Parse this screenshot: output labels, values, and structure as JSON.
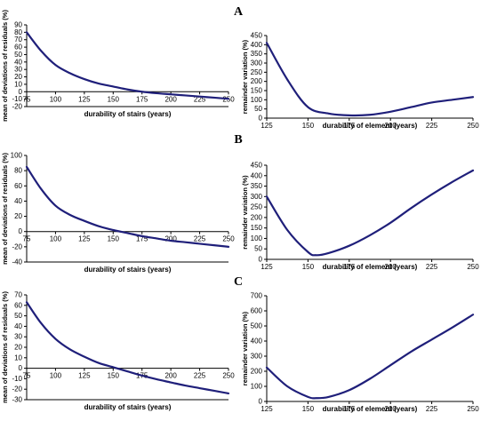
{
  "panels": [
    {
      "label": "A"
    },
    {
      "label": "B"
    },
    {
      "label": "C"
    }
  ],
  "chart_data": [
    {
      "type": "line",
      "panel": "A",
      "xlabel": "durability of stairs (years)",
      "ylabel": "mean of deviations of residuals (%)",
      "xlim": [
        75,
        250
      ],
      "ylim": [
        -20,
        90
      ],
      "xticks": [
        75,
        100,
        125,
        150,
        175,
        200,
        225,
        250
      ],
      "yticks": [
        -20,
        -10,
        0,
        10,
        20,
        30,
        40,
        50,
        60,
        70,
        80,
        90
      ],
      "grid": false,
      "color": "#1f1f7a",
      "x": [
        75,
        87.5,
        100,
        112.5,
        125,
        137.5,
        150,
        162.5,
        175,
        187.5,
        200,
        212.5,
        225,
        237.5,
        250
      ],
      "y": [
        80,
        55,
        36,
        25,
        17,
        11,
        7,
        3,
        0,
        -2,
        -3.5,
        -5,
        -6.5,
        -8,
        -9.5
      ]
    },
    {
      "type": "line",
      "panel": "A",
      "xlabel": "durability of element (years)",
      "ylabel": "remainder variation (%)",
      "xlim": [
        125,
        250
      ],
      "ylim": [
        0,
        450
      ],
      "xticks": [
        125,
        150,
        175,
        200,
        225,
        250
      ],
      "yticks": [
        0,
        50,
        100,
        150,
        200,
        250,
        300,
        350,
        400,
        450
      ],
      "grid": false,
      "color": "#1f1f7a",
      "x": [
        125,
        137.5,
        150,
        162.5,
        175,
        187.5,
        200,
        212.5,
        225,
        237.5,
        250
      ],
      "y": [
        410,
        210,
        60,
        25,
        15,
        18,
        35,
        60,
        85,
        100,
        115
      ]
    },
    {
      "type": "line",
      "panel": "B",
      "xlabel": "durability of stairs (years)",
      "ylabel": "mean of deviations of residuals (%)",
      "xlim": [
        75,
        250
      ],
      "ylim": [
        -40,
        100
      ],
      "xticks": [
        75,
        100,
        125,
        150,
        175,
        200,
        225,
        250
      ],
      "yticks": [
        -40,
        -20,
        0,
        20,
        40,
        60,
        80,
        100
      ],
      "grid": false,
      "color": "#1f1f7a",
      "x": [
        75,
        87.5,
        100,
        112.5,
        125,
        137.5,
        150,
        162.5,
        175,
        187.5,
        200,
        212.5,
        225,
        237.5,
        250
      ],
      "y": [
        85,
        56,
        34,
        22,
        14,
        7,
        2,
        -2,
        -6,
        -9,
        -12,
        -14,
        -16,
        -18,
        -20
      ]
    },
    {
      "type": "line",
      "panel": "B",
      "xlabel": "durability of element (years)",
      "ylabel": "remainder variation (%)",
      "xlim": [
        125,
        250
      ],
      "ylim": [
        0,
        450
      ],
      "xticks": [
        125,
        150,
        175,
        200,
        225,
        250
      ],
      "yticks": [
        0,
        50,
        100,
        150,
        200,
        250,
        300,
        350,
        400,
        450
      ],
      "grid": false,
      "color": "#1f1f7a",
      "x": [
        125,
        137.5,
        150,
        155,
        162.5,
        175,
        187.5,
        200,
        212.5,
        225,
        237.5,
        250
      ],
      "y": [
        300,
        140,
        35,
        20,
        30,
        65,
        115,
        175,
        245,
        310,
        370,
        425
      ]
    },
    {
      "type": "line",
      "panel": "C",
      "xlabel": "durability of stairs (years)",
      "ylabel": "mean of deviations of residuals (%)",
      "xlim": [
        75,
        250
      ],
      "ylim": [
        -30,
        70
      ],
      "xticks": [
        75,
        100,
        125,
        150,
        175,
        200,
        225,
        250
      ],
      "yticks": [
        -30,
        -20,
        -10,
        0,
        10,
        20,
        30,
        40,
        50,
        60,
        70
      ],
      "grid": false,
      "color": "#1f1f7a",
      "x": [
        75,
        87.5,
        100,
        112.5,
        125,
        137.5,
        150,
        162.5,
        175,
        187.5,
        200,
        212.5,
        225,
        237.5,
        250
      ],
      "y": [
        63,
        43,
        28,
        18,
        11,
        5,
        1,
        -3,
        -7,
        -10.5,
        -13.5,
        -16.5,
        -19,
        -21.5,
        -24
      ]
    },
    {
      "type": "line",
      "panel": "C",
      "xlabel": "durability of element (years)",
      "ylabel": "remainder variation (%)",
      "xlim": [
        125,
        250
      ],
      "ylim": [
        0,
        700
      ],
      "xticks": [
        125,
        150,
        175,
        200,
        225,
        250
      ],
      "yticks": [
        0,
        100,
        200,
        300,
        400,
        500,
        600,
        700
      ],
      "grid": false,
      "color": "#1f1f7a",
      "x": [
        125,
        137.5,
        150,
        155,
        162.5,
        175,
        187.5,
        200,
        212.5,
        225,
        237.5,
        250
      ],
      "y": [
        225,
        100,
        30,
        22,
        30,
        75,
        150,
        240,
        330,
        410,
        490,
        575
      ]
    }
  ]
}
